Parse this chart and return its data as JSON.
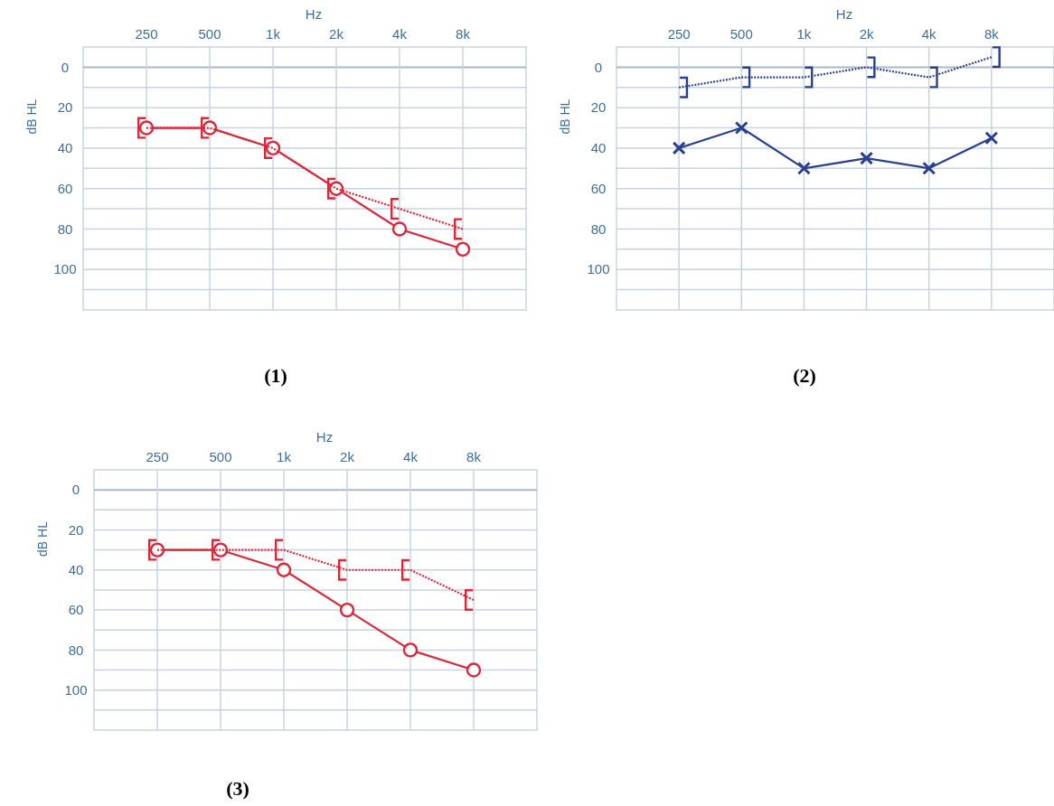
{
  "chart_data": [
    {
      "type": "line",
      "xlabel": "Hz",
      "ylabel": "dB HL",
      "annotations": [
        "(1)"
      ],
      "categories": [
        "250",
        "500",
        "1k",
        "2k",
        "4k",
        "8k"
      ],
      "ylim": [
        120,
        -10
      ],
      "yticks": [
        0,
        {
          "value": 10,
          "label": null
        },
        20,
        {
          "value": 30,
          "label": null
        },
        40,
        {
          "value": 50,
          "label": null
        },
        60,
        {
          "value": 70,
          "label": null
        },
        80,
        {
          "value": 90,
          "label": null
        },
        100,
        {
          "value": 110,
          "label": null
        }
      ],
      "grid": true,
      "series": [
        {
          "color": "#d8283c",
          "marker": "circle",
          "line_style": "solid",
          "values": [
            30,
            30,
            40,
            60,
            80,
            90
          ]
        },
        {
          "color": "#d8283c",
          "marker": "square",
          "line_style": "dotted",
          "values": [
            30,
            30,
            40,
            60,
            70,
            80
          ]
        }
      ]
    },
    {
      "type": "line",
      "xlabel": "Hz",
      "ylabel": "dB HL",
      "annotations": [
        "(2)"
      ],
      "categories": [
        "250",
        "500",
        "1k",
        "2k",
        "4k",
        "8k"
      ],
      "ylim": [
        120,
        -10
      ],
      "yticks": [
        0,
        {
          "value": 10,
          "label": null
        },
        20,
        {
          "value": 30,
          "label": null
        },
        40,
        {
          "value": 50,
          "label": null
        },
        60,
        {
          "value": 70,
          "label": null
        },
        80,
        {
          "value": 90,
          "label": null
        },
        100,
        {
          "value": 110,
          "label": null
        }
      ],
      "grid": true,
      "series": [
        {
          "color": "#2b3f8f",
          "marker": "cross",
          "line_style": "solid",
          "values": [
            40,
            30,
            50,
            45,
            50,
            35
          ]
        },
        {
          "color": "#2b3f8f",
          "marker": "square",
          "line_style": "dotted",
          "values": [
            10,
            5,
            5,
            0,
            5,
            -5
          ]
        }
      ]
    },
    {
      "type": "line",
      "xlabel": "Hz",
      "ylabel": "dB HL",
      "annotations": [
        "(3)"
      ],
      "categories": [
        "250",
        "500",
        "1k",
        "2k",
        "4k",
        "8k"
      ],
      "ylim": [
        120,
        -10
      ],
      "yticks": [
        0,
        {
          "value": 10,
          "label": null
        },
        20,
        {
          "value": 30,
          "label": null
        },
        40,
        {
          "value": 50,
          "label": null
        },
        60,
        {
          "value": 70,
          "label": null
        },
        80,
        {
          "value": 90,
          "label": null
        },
        100,
        {
          "value": 110,
          "label": null
        }
      ],
      "grid": true,
      "series": [
        {
          "color": "#d8283c",
          "marker": "circle",
          "line_style": "solid",
          "values": [
            30,
            30,
            40,
            60,
            80,
            90
          ]
        },
        {
          "color": "#d8283c",
          "marker": "square",
          "line_style": "dotted",
          "values": [
            30,
            30,
            30,
            40,
            40,
            55
          ]
        }
      ]
    }
  ]
}
